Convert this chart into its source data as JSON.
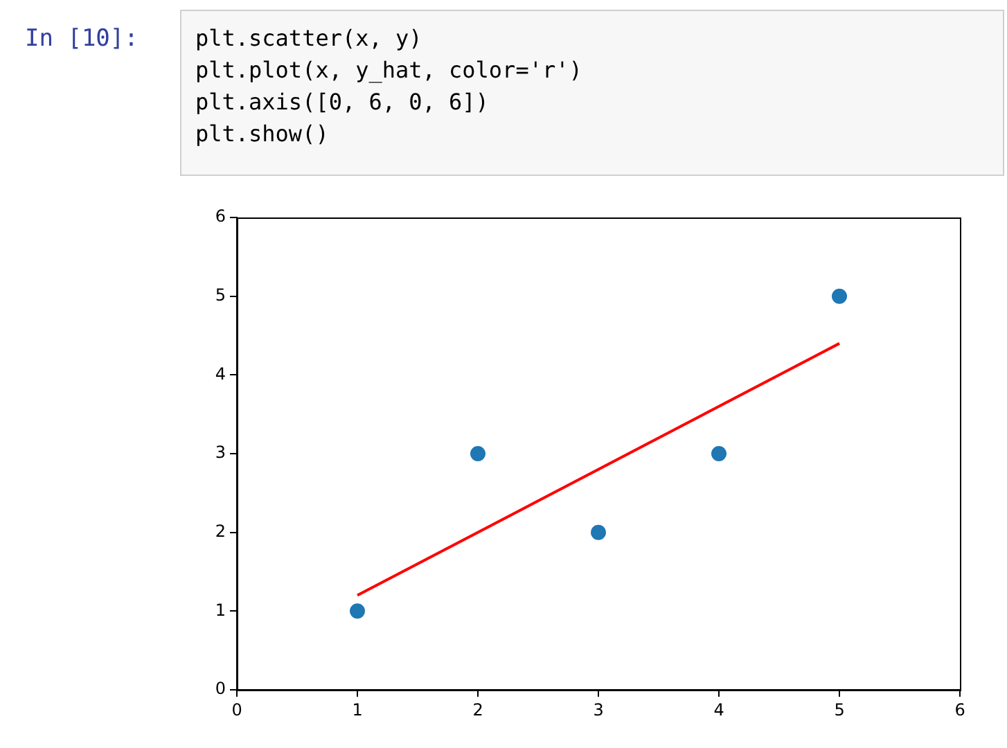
{
  "chart_data": {
    "type": "scatter",
    "annotations": [
      "In [10]:",
      "plt.scatter(x, y)",
      "plt.plot(x, y_hat, color='r')",
      "plt.axis([0, 6, 0, 6])",
      "plt.show()"
    ],
    "series": [
      {
        "type": "scatter",
        "x": [
          1,
          2,
          3,
          4,
          5
        ],
        "values": [
          1,
          3,
          2,
          3,
          5
        ],
        "color": "#1f77b4",
        "marker": "circle"
      },
      {
        "type": "line",
        "x": [
          1,
          5
        ],
        "values": [
          1.2,
          4.4
        ],
        "color": "#ff0000",
        "marker": "none"
      }
    ],
    "xlim": [
      0,
      6
    ],
    "ylim": [
      0,
      6
    ],
    "xticks": [
      0,
      1,
      2,
      3,
      4,
      5,
      6
    ],
    "yticks": [
      0,
      1,
      2,
      3,
      4,
      5,
      6
    ],
    "grid": false,
    "legend": false
  }
}
